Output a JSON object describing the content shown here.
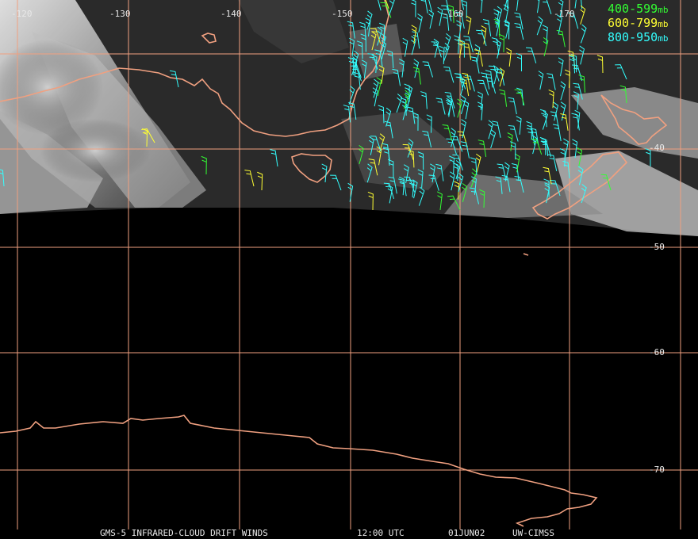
{
  "map": {
    "longitude_labels": [
      "-120",
      "-130",
      "-140",
      "-150",
      "-160",
      "-170"
    ],
    "latitude_labels": [
      "-40",
      "-50",
      "-60",
      "-70"
    ],
    "grid_color": "#f0a080",
    "coast_color": "#f0a080"
  },
  "legend": [
    {
      "range": "400-599",
      "unit": "mb",
      "color": "#33ff33"
    },
    {
      "range": "600-799",
      "unit": "mb",
      "color": "#ffff33"
    },
    {
      "range": "800-950",
      "unit": "mb",
      "color": "#33ffff"
    }
  ],
  "footer": {
    "product": "GMS-5 INFRARED-CLOUD DRIFT WINDS",
    "time": "12:00 UTC",
    "date": "01JUN02",
    "source": "UW-CIMSS"
  }
}
